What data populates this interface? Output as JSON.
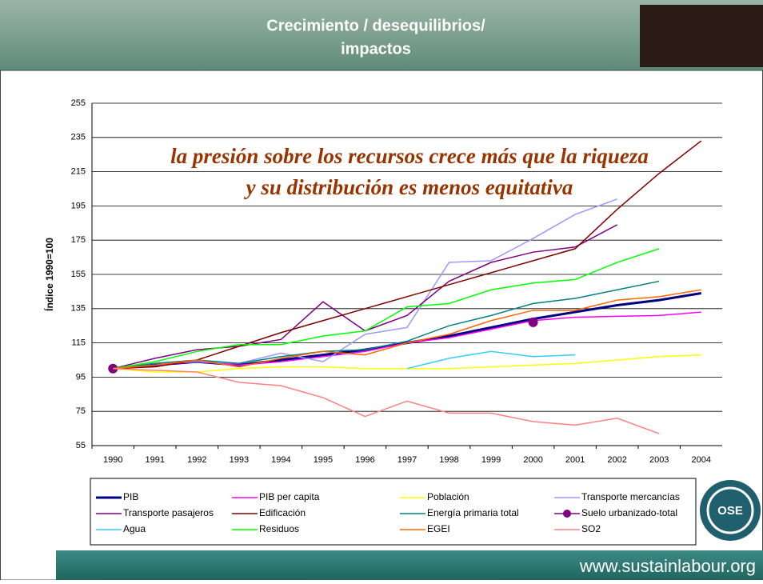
{
  "header": {
    "title_lines": [
      "Crecimiento / desequilibrios/",
      "impactos"
    ],
    "logo_text": "OSE",
    "footer_url": "www.sustainlabour.org"
  },
  "chart_data": {
    "type": "line",
    "annotation_lines": [
      "la presión sobre los recursos crece más que la riqueza",
      "y su distribución es  menos equitativa"
    ],
    "y_label": "Índice 1990=100",
    "categories": [
      "1990",
      "1991",
      "1992",
      "1993",
      "1994",
      "1995",
      "1996",
      "1997",
      "1998",
      "1999",
      "2000",
      "2001",
      "2002",
      "2003",
      "2004"
    ],
    "ylim": [
      55,
      255
    ],
    "yticks": [
      55,
      75,
      95,
      115,
      135,
      155,
      175,
      195,
      215,
      235,
      255
    ],
    "grid": true,
    "series": [
      {
        "name": "PIB",
        "color": "#000080",
        "line_width": 3,
        "values": [
          100,
          102,
          104,
          102,
          105,
          108,
          111,
          115,
          119,
          124,
          129,
          133,
          137,
          140,
          144
        ]
      },
      {
        "name": "PIB per capita",
        "color": "#ff00ff",
        "values": [
          100,
          102,
          104,
          102,
          104,
          107,
          110,
          115,
          118,
          123,
          128,
          130,
          130.5,
          131,
          133
        ]
      },
      {
        "name": "Población",
        "color": "#ffff00",
        "values": [
          100,
          98,
          98,
          100,
          101,
          101,
          100,
          100,
          100,
          101,
          102,
          103,
          105,
          107,
          108
        ]
      },
      {
        "name": "Transporte mercancías",
        "color": "#9999ff",
        "values": [
          100,
          103,
          104,
          103,
          109,
          104,
          120,
          124,
          162,
          163,
          176,
          190,
          199,
          null,
          null
        ]
      },
      {
        "name": "Transporte pasajeros",
        "color": "#800080",
        "values": [
          100,
          106,
          111,
          113,
          117,
          139,
          122,
          131,
          151,
          162,
          168,
          171,
          184,
          null,
          null
        ]
      },
      {
        "name": "Edificación",
        "color": "#800000",
        "values": [
          100,
          101,
          105,
          113,
          121,
          128,
          135,
          142,
          149,
          156,
          163,
          170,
          193,
          214,
          233
        ]
      },
      {
        "name": "Energía primaria total",
        "color": "#008080",
        "values": [
          100,
          103,
          105,
          103,
          107,
          110,
          111,
          116,
          125,
          131,
          138,
          141,
          146,
          151,
          null
        ]
      },
      {
        "name": "Suelo urbanizado-total",
        "color": "#800080",
        "style": "markers",
        "values": [
          100,
          null,
          null,
          null,
          null,
          null,
          null,
          null,
          null,
          null,
          127,
          null,
          null,
          null,
          null
        ]
      },
      {
        "name": "Agua",
        "color": "#33ccff",
        "values": [
          null,
          null,
          null,
          null,
          null,
          null,
          null,
          100,
          106,
          110,
          107,
          108,
          null,
          null,
          null
        ]
      },
      {
        "name": "Residuos",
        "color": "#00ff00",
        "values": [
          100,
          104,
          110,
          114,
          114,
          119,
          122,
          136,
          138,
          146,
          150,
          152,
          162,
          170,
          null
        ]
      },
      {
        "name": "EGEI",
        "color": "#ff6600",
        "values": [
          100,
          102,
          105,
          101,
          106,
          110,
          108,
          115,
          120,
          128,
          134,
          134,
          140,
          142,
          146
        ]
      },
      {
        "name": "SO2",
        "color": "#ff8080",
        "values": [
          100,
          99,
          98,
          92,
          90,
          83,
          72,
          81,
          74,
          74,
          69,
          67,
          71,
          62,
          null
        ]
      }
    ]
  }
}
